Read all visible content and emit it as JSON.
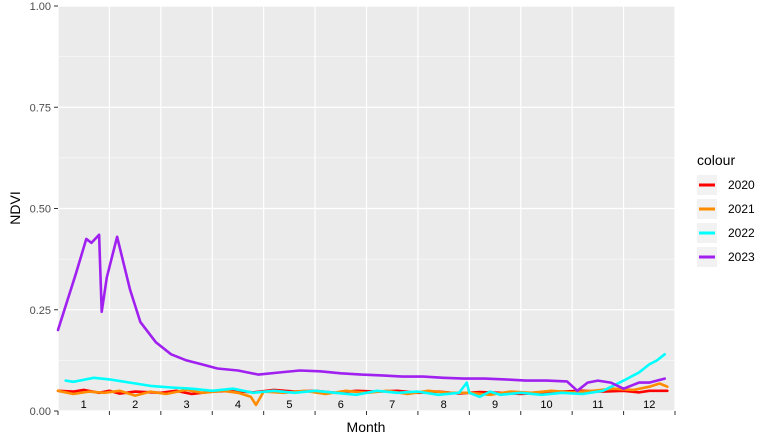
{
  "chart_data": {
    "type": "line",
    "title": "",
    "xlabel": "Month",
    "ylabel": "NDVI",
    "xlim": [
      1,
      13
    ],
    "ylim": [
      0,
      1
    ],
    "x_ticks": [
      "1",
      "2",
      "3",
      "4",
      "5",
      "6",
      "7",
      "8",
      "9",
      "10",
      "11",
      "12"
    ],
    "y_ticks": [
      "0.00",
      "0.25",
      "0.50",
      "0.75",
      "1.00"
    ],
    "grid": true,
    "legend": {
      "title": "colour",
      "position": "right"
    },
    "series": [
      {
        "name": "2020",
        "color": "#ff0000",
        "x": [
          1,
          1.3,
          1.5,
          1.8,
          2.0,
          2.2,
          2.5,
          3.0,
          3.3,
          3.6,
          4.0,
          4.4,
          4.8,
          5.2,
          5.6,
          6.0,
          6.4,
          6.8,
          7.2,
          7.6,
          8.0,
          8.4,
          8.8,
          9.2,
          9.6,
          10.0,
          10.4,
          10.8,
          11.2,
          11.6,
          12.0,
          12.3,
          12.5,
          12.85
        ],
        "y": [
          0.05,
          0.048,
          0.052,
          0.045,
          0.05,
          0.043,
          0.048,
          0.045,
          0.05,
          0.042,
          0.048,
          0.05,
          0.046,
          0.052,
          0.048,
          0.05,
          0.045,
          0.05,
          0.048,
          0.05,
          0.045,
          0.048,
          0.043,
          0.047,
          0.045,
          0.042,
          0.045,
          0.048,
          0.05,
          0.048,
          0.05,
          0.046,
          0.05,
          0.05
        ]
      },
      {
        "name": "2021",
        "color": "#ff8c00",
        "x": [
          1,
          1.3,
          1.6,
          1.9,
          2.2,
          2.5,
          2.8,
          3.1,
          3.5,
          3.8,
          4.2,
          4.5,
          4.75,
          4.85,
          5.0,
          5.4,
          5.8,
          6.2,
          6.6,
          7.0,
          7.4,
          7.8,
          8.2,
          8.6,
          9.0,
          9.4,
          9.8,
          10.2,
          10.6,
          11.0,
          11.4,
          11.8,
          12.2,
          12.5,
          12.7,
          12.85
        ],
        "y": [
          0.05,
          0.042,
          0.048,
          0.045,
          0.05,
          0.038,
          0.048,
          0.042,
          0.052,
          0.045,
          0.05,
          0.045,
          0.035,
          0.015,
          0.048,
          0.045,
          0.05,
          0.042,
          0.05,
          0.045,
          0.05,
          0.042,
          0.05,
          0.045,
          0.045,
          0.04,
          0.048,
          0.045,
          0.05,
          0.046,
          0.05,
          0.055,
          0.052,
          0.06,
          0.068,
          0.06
        ]
      },
      {
        "name": "2022",
        "color": "#00ffff",
        "x": [
          1.15,
          1.3,
          1.7,
          2.0,
          2.4,
          2.8,
          3.2,
          3.6,
          4.0,
          4.4,
          4.8,
          5.2,
          5.6,
          6.0,
          6.4,
          6.8,
          7.2,
          7.6,
          8.0,
          8.4,
          8.8,
          8.95,
          9.0,
          9.2,
          9.4,
          9.6,
          10.0,
          10.4,
          10.8,
          11.2,
          11.6,
          12.0,
          12.3,
          12.5,
          12.65,
          12.8
        ],
        "y": [
          0.075,
          0.072,
          0.082,
          0.078,
          0.07,
          0.062,
          0.058,
          0.055,
          0.05,
          0.055,
          0.045,
          0.05,
          0.045,
          0.05,
          0.045,
          0.04,
          0.05,
          0.045,
          0.048,
          0.04,
          0.045,
          0.07,
          0.045,
          0.035,
          0.048,
          0.04,
          0.045,
          0.04,
          0.045,
          0.042,
          0.05,
          0.075,
          0.095,
          0.115,
          0.125,
          0.14
        ]
      },
      {
        "name": "2023",
        "color": "#a020f0",
        "x": [
          1,
          1.35,
          1.55,
          1.65,
          1.8,
          1.85,
          1.95,
          2.15,
          2.4,
          2.6,
          2.9,
          3.2,
          3.5,
          3.8,
          4.1,
          4.5,
          4.9,
          5.3,
          5.7,
          6.1,
          6.5,
          6.9,
          7.3,
          7.7,
          8.1,
          8.5,
          8.9,
          9.3,
          9.7,
          10.1,
          10.5,
          10.9,
          11.1,
          11.3,
          11.5,
          11.75,
          12.0,
          12.3,
          12.5,
          12.65,
          12.8
        ],
        "y": [
          0.2,
          0.34,
          0.425,
          0.415,
          0.435,
          0.245,
          0.33,
          0.43,
          0.3,
          0.22,
          0.17,
          0.14,
          0.125,
          0.115,
          0.105,
          0.1,
          0.09,
          0.095,
          0.1,
          0.098,
          0.093,
          0.09,
          0.088,
          0.085,
          0.085,
          0.082,
          0.08,
          0.08,
          0.078,
          0.075,
          0.075,
          0.073,
          0.05,
          0.07,
          0.075,
          0.07,
          0.055,
          0.07,
          0.07,
          0.075,
          0.08
        ]
      }
    ]
  }
}
